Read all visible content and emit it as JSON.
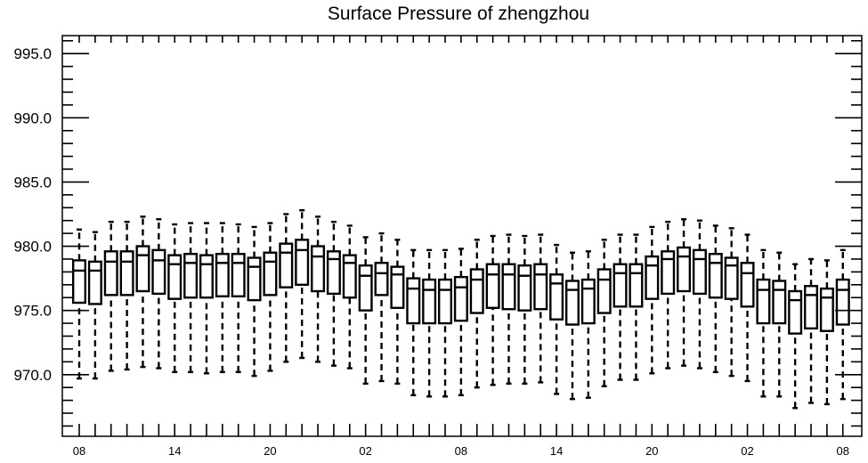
{
  "chart_data": {
    "type": "box",
    "title": "Surface Pressure of zhengzhou",
    "xlabel": "",
    "ylabel": "",
    "ylim": [
      965.2,
      996.4
    ],
    "yticks": [
      970.0,
      975.0,
      980.0,
      985.0,
      990.0,
      995.0
    ],
    "ytick_labels": [
      "970.0",
      "975.0",
      "980.0",
      "985.0",
      "990.0",
      "995.0"
    ],
    "xtick_labels": [
      "08",
      "14",
      "20",
      "02",
      "08",
      "14",
      "20",
      "02",
      "08"
    ],
    "xtick_every": 6,
    "grid": false,
    "legend": "none",
    "series": [
      {
        "whisker_low": [
          969.7,
          969.7,
          970.3,
          970.4,
          970.6,
          970.5,
          970.2,
          970.2,
          970.1,
          970.2,
          970.2,
          969.9,
          970.3,
          971.0,
          971.3,
          971.0,
          970.7,
          970.5,
          969.3,
          969.5,
          969.3,
          968.4,
          968.3,
          968.3,
          968.4,
          969.0,
          969.2,
          969.3,
          969.3,
          969.4,
          968.5,
          968.1,
          968.2,
          969.1,
          969.6,
          969.6,
          970.1,
          970.5,
          970.7,
          970.5,
          970.2,
          969.9,
          969.5,
          968.3,
          968.3,
          967.4,
          967.8,
          967.7,
          968.1
        ],
        "q1": [
          975.6,
          975.5,
          976.2,
          976.2,
          976.5,
          976.3,
          975.9,
          976.0,
          976.0,
          976.1,
          976.1,
          975.8,
          976.2,
          976.8,
          977.0,
          976.5,
          976.3,
          976.0,
          975.0,
          976.2,
          975.2,
          974.0,
          974.0,
          974.0,
          974.2,
          974.8,
          975.2,
          975.1,
          975.0,
          975.1,
          974.3,
          973.9,
          974.0,
          974.8,
          975.3,
          975.3,
          975.9,
          976.3,
          976.5,
          976.3,
          976.0,
          975.9,
          975.3,
          974.0,
          974.0,
          973.2,
          973.6,
          973.4,
          973.9
        ],
        "median": [
          978.1,
          978.1,
          978.8,
          978.8,
          979.3,
          978.9,
          978.6,
          978.7,
          978.6,
          978.7,
          978.7,
          978.4,
          978.8,
          979.5,
          979.7,
          979.2,
          979.0,
          978.7,
          977.7,
          977.9,
          977.8,
          976.7,
          976.6,
          976.6,
          976.8,
          977.4,
          977.8,
          977.8,
          977.7,
          977.8,
          977.1,
          976.6,
          976.7,
          977.4,
          977.9,
          977.9,
          978.5,
          979.0,
          979.2,
          979.0,
          978.7,
          978.5,
          977.9,
          976.6,
          976.6,
          975.8,
          976.2,
          976.0,
          976.6
        ],
        "q3": [
          978.9,
          978.8,
          979.6,
          979.6,
          980.0,
          979.7,
          979.3,
          979.4,
          979.3,
          979.4,
          979.4,
          979.1,
          979.5,
          980.2,
          980.5,
          980.0,
          979.6,
          979.3,
          978.5,
          978.7,
          978.4,
          977.5,
          977.4,
          977.4,
          977.6,
          978.2,
          978.6,
          978.6,
          978.5,
          978.6,
          977.8,
          977.3,
          977.4,
          978.2,
          978.6,
          978.6,
          979.2,
          979.6,
          979.9,
          979.7,
          979.4,
          979.1,
          978.7,
          977.4,
          977.3,
          976.5,
          976.9,
          976.7,
          977.4
        ],
        "whisker_high": [
          981.3,
          981.1,
          981.9,
          981.9,
          982.3,
          982.1,
          981.7,
          981.8,
          981.8,
          981.8,
          981.7,
          981.5,
          981.8,
          982.5,
          982.8,
          982.3,
          981.9,
          981.6,
          980.7,
          981.0,
          980.5,
          979.7,
          979.7,
          979.7,
          979.8,
          980.5,
          980.8,
          980.9,
          980.8,
          980.9,
          980.1,
          979.5,
          979.6,
          980.5,
          980.9,
          980.9,
          981.5,
          981.9,
          982.1,
          982.0,
          981.6,
          981.4,
          980.9,
          979.7,
          979.5,
          978.6,
          979.0,
          978.9,
          979.7
        ]
      }
    ]
  }
}
